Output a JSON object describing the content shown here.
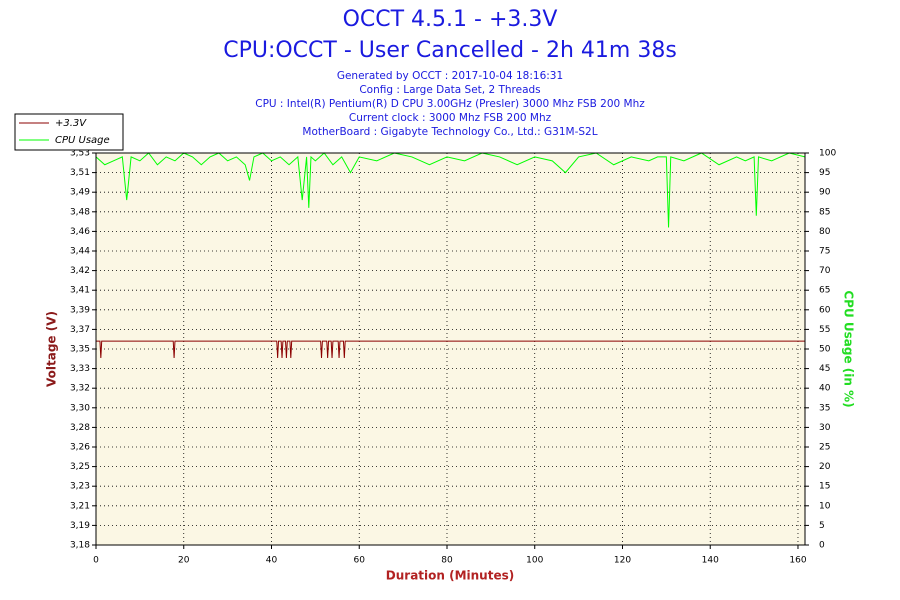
{
  "chart_data": {
    "type": "line",
    "title": "OCCT 4.5.1 - +3.3V",
    "subtitle": "CPU:OCCT - User Cancelled - 2h 41m 38s",
    "info": [
      "Generated by OCCT : 2017-10-04 18:16:31",
      "Config : Large Data Set, 2 Threads",
      "CPU : Intel(R) Pentium(R) D CPU 3.00GHz (Presler) 3000 Mhz FSB 200 Mhz",
      "Current clock : 3000 Mhz FSB 200 Mhz",
      "MotherBoard : Gigabyte Technology Co., Ltd.: G31M-S2L"
    ],
    "xlabel": "Duration (Minutes)",
    "ylabel": "Voltage (V)",
    "y2label": "CPU Usage (in %)",
    "xlim": [
      0,
      161.6
    ],
    "xticks": [
      0,
      20,
      40,
      60,
      80,
      100,
      120,
      140,
      160
    ],
    "ylim": [
      3.18,
      3.53
    ],
    "yticks": [
      {
        "value": 3.18,
        "label": "3,18"
      },
      {
        "value": 3.1975,
        "label": "3,19"
      },
      {
        "value": 3.215,
        "label": "3,21"
      },
      {
        "value": 3.2325,
        "label": "3,23"
      },
      {
        "value": 3.25,
        "label": "3,25"
      },
      {
        "value": 3.2675,
        "label": "3,26"
      },
      {
        "value": 3.285,
        "label": "3,28"
      },
      {
        "value": 3.3025,
        "label": "3,30"
      },
      {
        "value": 3.32,
        "label": "3,32"
      },
      {
        "value": 3.3375,
        "label": "3,33"
      },
      {
        "value": 3.355,
        "label": "3,35"
      },
      {
        "value": 3.3725,
        "label": "3,37"
      },
      {
        "value": 3.39,
        "label": "3,39"
      },
      {
        "value": 3.4075,
        "label": "3,41"
      },
      {
        "value": 3.425,
        "label": "3,42"
      },
      {
        "value": 3.4425,
        "label": "3,44"
      },
      {
        "value": 3.46,
        "label": "3,46"
      },
      {
        "value": 3.4775,
        "label": "3,48"
      },
      {
        "value": 3.495,
        "label": "3,49"
      },
      {
        "value": 3.5125,
        "label": "3,51"
      },
      {
        "value": 3.53,
        "label": "3,53"
      }
    ],
    "y2lim": [
      0,
      100
    ],
    "y2ticks": [
      0,
      5,
      10,
      15,
      20,
      25,
      30,
      35,
      40,
      45,
      50,
      55,
      60,
      65,
      70,
      75,
      80,
      85,
      90,
      95,
      100
    ],
    "grid": true,
    "legend": "top-left",
    "series": [
      {
        "name": "+3.3V",
        "color": "#8b0000",
        "x": [
          0,
          0.9,
          1.1,
          1.3,
          17.6,
          17.8,
          18.0,
          41.2,
          41.4,
          41.6,
          42.2,
          42.4,
          42.6,
          43.2,
          43.4,
          43.6,
          44.2,
          44.4,
          44.6,
          51.2,
          51.4,
          51.6,
          52.6,
          52.8,
          53.0,
          53.6,
          53.8,
          54.0,
          55.2,
          55.4,
          55.6,
          56.4,
          56.6,
          56.8,
          161.6
        ],
        "values": [
          3.362,
          3.362,
          3.347,
          3.362,
          3.362,
          3.347,
          3.362,
          3.362,
          3.347,
          3.362,
          3.362,
          3.347,
          3.362,
          3.362,
          3.347,
          3.362,
          3.362,
          3.347,
          3.362,
          3.362,
          3.347,
          3.362,
          3.362,
          3.347,
          3.362,
          3.362,
          3.347,
          3.362,
          3.362,
          3.347,
          3.362,
          3.362,
          3.347,
          3.362,
          3.362
        ]
      },
      {
        "name": "CPU Usage",
        "color": "#00ff00",
        "axis": "y2",
        "x": [
          0,
          2,
          4,
          6,
          7,
          8,
          10,
          12,
          14,
          16,
          18,
          20,
          22,
          24,
          26,
          28,
          30,
          32,
          34,
          35,
          36,
          38,
          40,
          42,
          44,
          46,
          47,
          48,
          48.5,
          49,
          50,
          52,
          54,
          56,
          58,
          60,
          64,
          68,
          72,
          76,
          80,
          84,
          88,
          92,
          96,
          100,
          104,
          107,
          110,
          114,
          118,
          122,
          126,
          128,
          130,
          130.5,
          131,
          134,
          138,
          142,
          146,
          148,
          150,
          150.5,
          151,
          154,
          158,
          161.6
        ],
        "values": [
          99,
          97,
          98,
          99,
          88,
          99,
          98,
          100,
          97,
          99,
          98,
          100,
          99,
          97,
          99,
          100,
          98,
          99,
          97,
          93,
          99,
          100,
          98,
          99,
          97,
          99,
          88,
          99,
          86,
          99,
          98,
          100,
          97,
          99,
          95,
          99,
          98,
          100,
          99,
          97,
          99,
          98,
          100,
          99,
          97,
          99,
          98,
          95,
          99,
          100,
          97,
          99,
          98,
          99,
          99,
          81,
          99,
          98,
          100,
          97,
          99,
          98,
          99,
          84,
          99,
          98,
          100,
          99
        ]
      }
    ]
  }
}
